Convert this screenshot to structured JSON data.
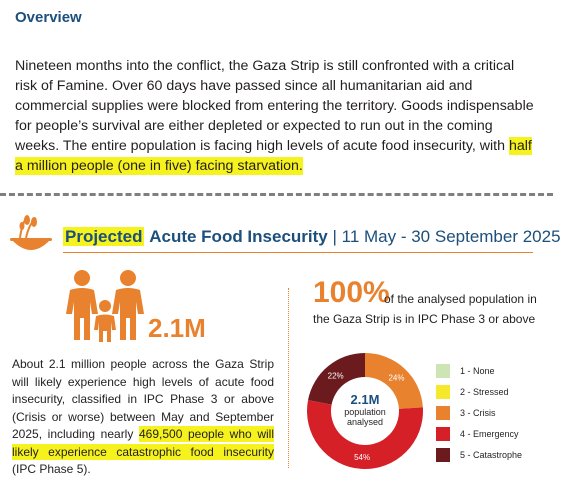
{
  "overview": {
    "title": "Overview",
    "paragraph_pre": "Nineteen months into the conflict, the Gaza Strip is still confronted with a critical risk of Famine. Over 60 days have passed since all humanitarian aid and commercial supplies were blocked from entering the territory. Goods indispensable for people’s survival are either depleted or expected to run out in the coming weeks. The entire population is facing high levels of acute food insecurity, with ",
    "paragraph_highlight": "half a million people (one in five) facing starvation."
  },
  "section": {
    "title_projected": "Projected",
    "title_main": "Acute Food Insecurity",
    "title_dates": "| 11 May - 30 September 2025"
  },
  "people": {
    "value": "2.1M",
    "text_pre": "About 2.1 million people across the Gaza Strip will likely experience high levels of acute food insecurity, classified in IPC Phase 3 or above (Crisis or worse) between May and September 2025, including nearly ",
    "text_highlight": "469,500 people who will likely experience catastrophic food insecurity",
    "text_post": " (IPC Phase 5)."
  },
  "analysis": {
    "pct_value": "100%",
    "pct_text_line1": "of the analysed population in",
    "pct_text_line2": "the Gaza Strip is in IPC Phase 3 or above",
    "center_value": "2.1M",
    "center_label_line1": "population",
    "center_label_line2": "analysed"
  },
  "chart_data": {
    "type": "pie",
    "categories": [
      "1 - None",
      "2 - Stressed",
      "3 - Crisis",
      "4 - Emergency",
      "5 - Catastrophe"
    ],
    "values": [
      0,
      0,
      24,
      54,
      22
    ],
    "data_labels": [
      "",
      "",
      "24%",
      "54%",
      "22%"
    ],
    "colors": [
      "#cde5b4",
      "#f6e82a",
      "#e8822e",
      "#d52027",
      "#6b1a1d"
    ],
    "legend_position": "right"
  }
}
